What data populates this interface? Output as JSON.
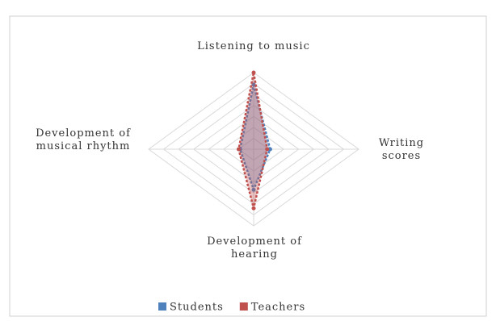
{
  "chart_data": {
    "type": "radar",
    "categories": [
      "Listening to music",
      "Writing scores",
      "Development of hearing",
      "Development of musical rhythm"
    ],
    "series": [
      {
        "name": "Students",
        "color": "#4f81bd",
        "values": [
          5.9,
          1.1,
          3.7,
          0.9
        ]
      },
      {
        "name": "Teachers",
        "color": "#c0504d",
        "values": [
          7,
          0.9,
          5.4,
          1.0
        ]
      }
    ],
    "ylim": [
      0,
      7
    ],
    "yticks": [
      0,
      1,
      2,
      3,
      4,
      5,
      6,
      7
    ],
    "grid": true,
    "legend": "bottom"
  }
}
